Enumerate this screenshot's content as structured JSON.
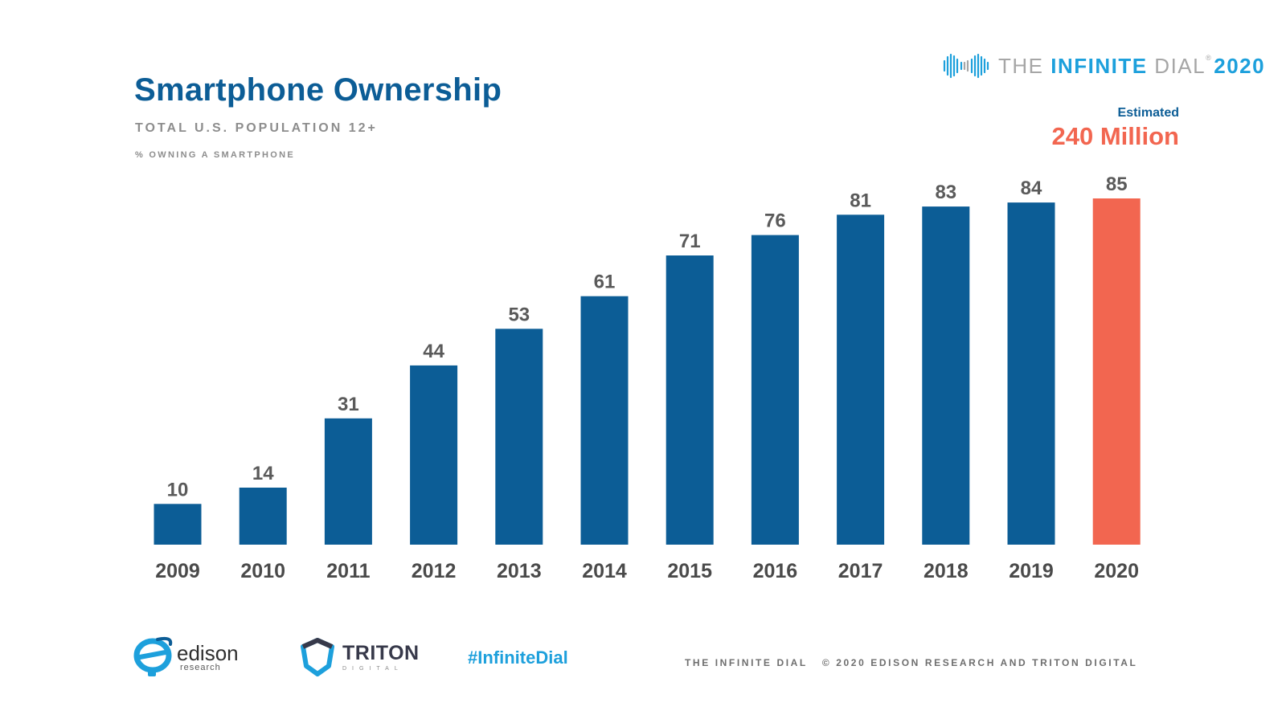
{
  "header": {
    "title": "Smartphone Ownership",
    "subtitle": "TOTAL U.S. POPULATION 12+",
    "unit_label": "% OWNING A SMARTPHONE"
  },
  "brand": {
    "part1": "THE ",
    "part2": "INFINITE",
    "part3": " DIAL",
    "trademark": "®",
    "year": "2020"
  },
  "estimate": {
    "label": "Estimated",
    "value": "240 Million"
  },
  "colors": {
    "primary_bar": "#0c5d96",
    "highlight_bar": "#f26650",
    "accent": "#1da0dc"
  },
  "chart_data": {
    "type": "bar",
    "title": "Smartphone Ownership",
    "subtitle": "TOTAL U.S. POPULATION 12+",
    "ylabel": "% OWNING A SMARTPHONE",
    "xlabel": "",
    "categories": [
      "2009",
      "2010",
      "2011",
      "2012",
      "2013",
      "2014",
      "2015",
      "2016",
      "2017",
      "2018",
      "2019",
      "2020"
    ],
    "values": [
      10,
      14,
      31,
      44,
      53,
      61,
      71,
      76,
      81,
      83,
      84,
      85
    ],
    "highlight_index": 11,
    "ylim": [
      0,
      85
    ],
    "grid": false,
    "legend": "none"
  },
  "footer": {
    "hashtag": "#InfiniteDial",
    "copyright_left": "THE INFINITE DIAL",
    "copyright_right": "© 2020 EDISON RESEARCH AND TRITON DIGITAL",
    "edison_name": "edison",
    "edison_sub": "research",
    "triton_name": "TRITON",
    "triton_sub": "DIGITAL"
  }
}
